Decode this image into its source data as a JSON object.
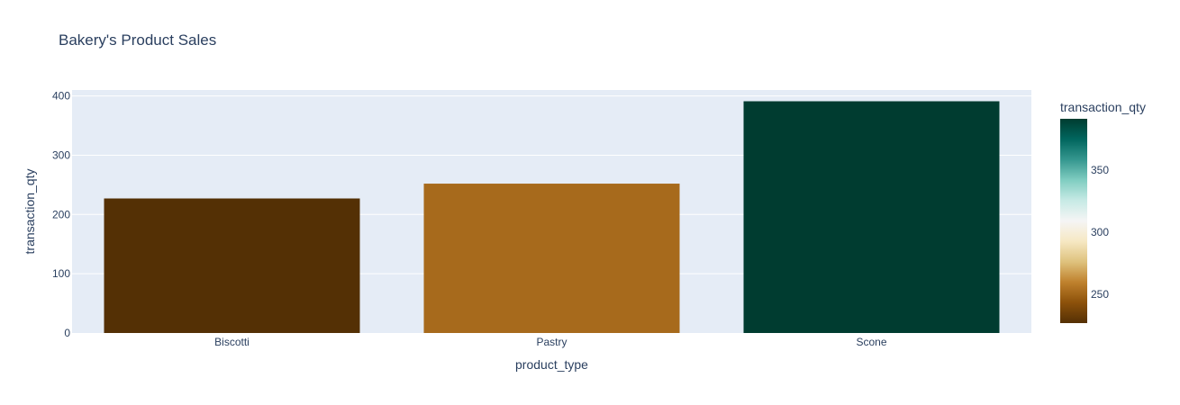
{
  "chart_data": {
    "type": "bar",
    "title": "Bakery's Product Sales",
    "xlabel": "product_type",
    "ylabel": "transaction_qty",
    "categories": [
      "Biscotti",
      "Pastry",
      "Scone"
    ],
    "values": [
      227,
      252,
      391
    ],
    "ylim": [
      0,
      410
    ],
    "yticks": [
      0,
      100,
      200,
      300,
      400
    ],
    "grid": true,
    "colorbar": {
      "title": "transaction_qty",
      "range": [
        227,
        391
      ],
      "ticks": [
        250,
        300,
        350
      ],
      "colorscale": [
        "#543005",
        "#8c510a",
        "#bf812d",
        "#dfc27d",
        "#f6e8c3",
        "#f5f5f5",
        "#c7eae5",
        "#80cdc1",
        "#35978f",
        "#01665e",
        "#003c30"
      ]
    },
    "colors": {
      "plot_bg": "#e5ecf6",
      "grid": "#ffffff",
      "text": "#2a3f5f"
    }
  }
}
